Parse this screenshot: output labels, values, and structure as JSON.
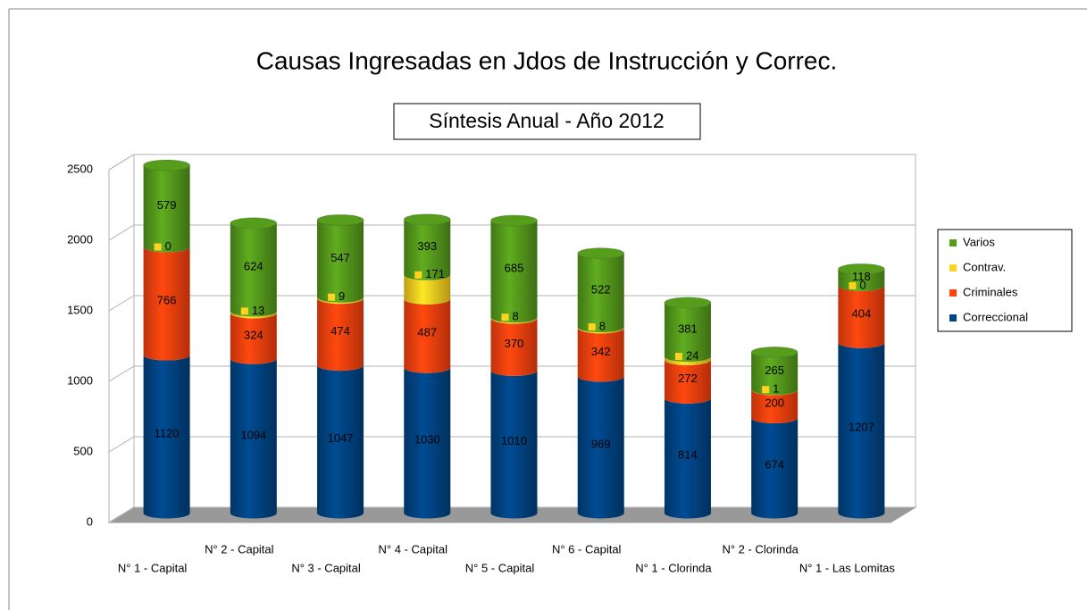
{
  "chart_data": {
    "type": "bar",
    "stacked": true,
    "title": "Causas Ingresadas en Jdos de Instrucción y Correc.",
    "subtitle": "Síntesis Anual - Año 2012",
    "categories": [
      "N° 1 - Capital",
      "N° 2 - Capital",
      "N° 3 - Capital",
      "N° 4 - Capital",
      "N° 5 - Capital",
      "N° 6 - Capital",
      "N° 1 - Clorinda",
      "N° 2 - Clorinda",
      "N° 1 - Las Lomitas"
    ],
    "series": [
      {
        "name": "Correccional",
        "color": "#004586",
        "values": [
          1120,
          1094,
          1047,
          1030,
          1010,
          969,
          814,
          674,
          1207
        ]
      },
      {
        "name": "Criminales",
        "color": "#ff420e",
        "values": [
          766,
          324,
          474,
          487,
          370,
          342,
          272,
          200,
          404
        ]
      },
      {
        "name": "Contrav.",
        "color": "#ffd320",
        "values": [
          0,
          13,
          9,
          171,
          8,
          8,
          24,
          1,
          0
        ]
      },
      {
        "name": "Varios",
        "color": "#579d1c",
        "values": [
          579,
          624,
          547,
          393,
          685,
          522,
          381,
          265,
          118
        ]
      }
    ],
    "ylim": [
      0,
      2500
    ],
    "yticks": [
      0,
      500,
      1000,
      1500,
      2000,
      2500
    ],
    "grid": true,
    "legend": "right"
  }
}
